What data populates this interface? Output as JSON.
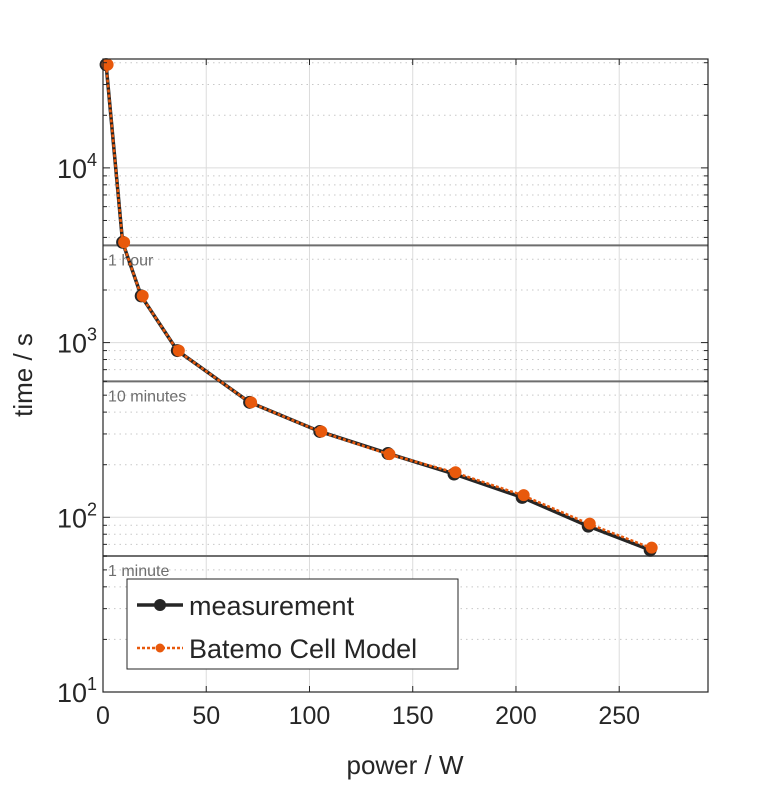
{
  "chart_data": {
    "type": "line",
    "xlabel": "power / W",
    "ylabel": "time / s",
    "xlim": [
      0,
      293
    ],
    "ylim": [
      10,
      42000
    ],
    "yscale": "log",
    "xticks": [
      0,
      50,
      100,
      150,
      200,
      250
    ],
    "xtick_labels": [
      "0",
      "50",
      "100",
      "150",
      "200",
      "250"
    ],
    "yticks": [
      10,
      100,
      1000,
      10000
    ],
    "ytick_exponents": [
      "1",
      "2",
      "3",
      "4"
    ],
    "ytick_base": "10",
    "grid": true,
    "legend_placement": "bottom-left",
    "reference_lines": [
      {
        "y": 3600,
        "label": "1 hour"
      },
      {
        "y": 600,
        "label": "10 minutes"
      },
      {
        "y": 60,
        "label": "1 minute"
      }
    ],
    "series": [
      {
        "name": "measurement",
        "color": "#262626",
        "style": "solid",
        "x": [
          1.5,
          9.5,
          18.5,
          36,
          71,
          105,
          138,
          170,
          203,
          235,
          265
        ],
        "y": [
          39000,
          3750,
          1850,
          900,
          455,
          310,
          232,
          177,
          130,
          89,
          65
        ]
      },
      {
        "name": "Batemo Cell Model",
        "color": "#e8590c",
        "style": "dotted",
        "x": [
          1.5,
          9.5,
          18.5,
          36,
          71,
          105,
          138,
          170,
          203,
          235,
          265
        ],
        "y": [
          39000,
          3750,
          1850,
          900,
          455,
          310,
          230,
          181,
          134,
          92,
          67
        ]
      }
    ]
  }
}
